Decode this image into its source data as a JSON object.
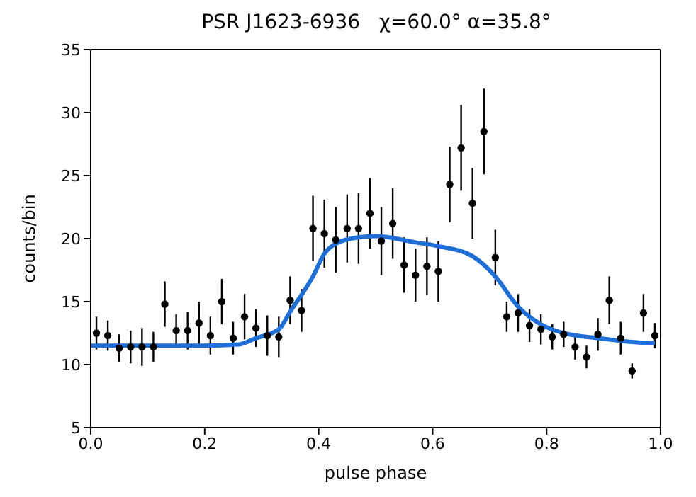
{
  "chart_data": {
    "type": "scatter",
    "title": "PSR J1623-6936   χ=60.0° α=35.8°",
    "xlabel": "pulse phase",
    "ylabel": "counts/bin",
    "xlim": [
      0,
      1
    ],
    "xticks": [
      {
        "value": 0,
        "label": "0.0"
      },
      0.2,
      0.4,
      0.6,
      0.8,
      {
        "value": 1,
        "label": "1.0"
      }
    ],
    "ylim": [
      5,
      35
    ],
    "yticks": [
      5,
      10,
      15,
      20,
      25,
      30,
      35
    ],
    "series": [
      {
        "color": "#000000",
        "marker": "circle",
        "x": [
          0.01,
          0.03,
          0.05,
          0.07,
          0.09,
          0.11,
          0.13,
          0.15,
          0.17,
          0.19,
          0.21,
          0.23,
          0.25,
          0.27,
          0.29,
          0.31,
          0.33,
          0.35,
          0.37,
          0.39,
          0.41,
          0.43,
          0.45,
          0.47,
          0.49,
          0.51,
          0.53,
          0.55,
          0.57,
          0.59,
          0.61,
          0.63,
          0.65,
          0.67,
          0.69,
          0.71,
          0.73,
          0.75,
          0.77,
          0.79,
          0.81,
          0.83,
          0.85,
          0.87,
          0.89,
          0.91,
          0.93,
          0.95,
          0.97,
          0.99
        ],
        "values": [
          12.5,
          12.3,
          11.3,
          11.4,
          11.4,
          11.4,
          14.8,
          12.7,
          12.7,
          13.3,
          12.3,
          15.0,
          12.1,
          13.8,
          12.9,
          12.3,
          12.2,
          15.1,
          14.3,
          20.8,
          20.4,
          19.9,
          20.8,
          20.8,
          22.0,
          19.8,
          21.2,
          17.9,
          17.1,
          17.8,
          17.4,
          24.3,
          27.2,
          22.8,
          28.5,
          18.5,
          13.8,
          14.1,
          13.1,
          12.8,
          12.2,
          12.4,
          11.4,
          10.6,
          12.4,
          15.1,
          12.1,
          9.5,
          14.1,
          12.3
        ],
        "errors": [
          1.3,
          1.2,
          1.1,
          1.3,
          1.5,
          1.2,
          1.8,
          1.3,
          1.5,
          1.7,
          1.5,
          1.8,
          1.3,
          1.8,
          1.5,
          1.6,
          1.6,
          1.9,
          1.7,
          2.6,
          2.7,
          2.6,
          2.7,
          2.8,
          2.8,
          2.7,
          2.8,
          2.2,
          2.1,
          2.3,
          2.4,
          3.0,
          3.4,
          2.8,
          3.4,
          2.2,
          1.2,
          1.5,
          1.3,
          1.2,
          1.0,
          1.0,
          1.0,
          0.9,
          1.3,
          1.9,
          1.3,
          0.6,
          1.5,
          1.0
        ]
      },
      {
        "type": "line",
        "color": "#1f6fd6",
        "marker": "none",
        "x": [
          0,
          0.1,
          0.2,
          0.26,
          0.29,
          0.33,
          0.35,
          0.39,
          0.41,
          0.43,
          0.47,
          0.5,
          0.57,
          0.61,
          0.67,
          0.71,
          0.75,
          0.79,
          0.83,
          0.87,
          0.91,
          0.95,
          0.99
        ],
        "values": [
          11.5,
          11.5,
          11.5,
          11.6,
          12.1,
          12.8,
          14.2,
          17.0,
          18.8,
          19.6,
          20.1,
          20.2,
          19.7,
          19.4,
          18.6,
          17.0,
          14.6,
          13.2,
          12.5,
          12.2,
          12.0,
          11.8,
          11.7
        ]
      }
    ]
  }
}
